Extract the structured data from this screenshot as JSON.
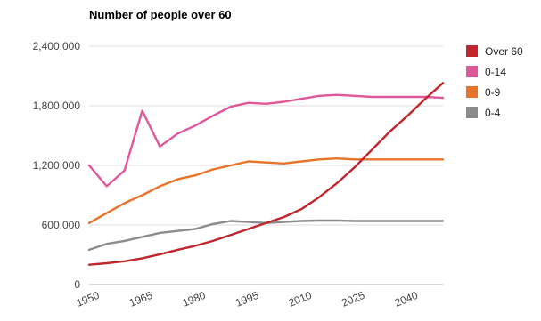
{
  "chart_data": {
    "type": "line",
    "title": "Number of people over 60",
    "xlabel": "",
    "ylabel": "",
    "x": [
      1950,
      1955,
      1960,
      1965,
      1970,
      1975,
      1980,
      1985,
      1990,
      1995,
      2000,
      2005,
      2010,
      2015,
      2020,
      2025,
      2030,
      2035,
      2040,
      2045,
      2050
    ],
    "x_ticks": [
      1950,
      1965,
      1980,
      1995,
      2010,
      2025,
      2040
    ],
    "y_ticks": [
      0,
      600000,
      1200000,
      1800000,
      2400000
    ],
    "y_tick_labels": [
      "0",
      "600,000",
      "1,200,000",
      "1,800,000",
      "2,400,000"
    ],
    "xlim": [
      1950,
      2050
    ],
    "ylim": [
      0,
      2400000
    ],
    "grid": true,
    "legend_position": "right",
    "series": [
      {
        "name": "Over 60",
        "color": "#c0262c",
        "values": [
          200000,
          215000,
          235000,
          265000,
          305000,
          350000,
          390000,
          440000,
          500000,
          560000,
          620000,
          680000,
          760000,
          880000,
          1020000,
          1180000,
          1360000,
          1540000,
          1700000,
          1870000,
          2030000
        ]
      },
      {
        "name": "0-14",
        "color": "#e0579a",
        "values": [
          1200000,
          990000,
          1150000,
          1750000,
          1390000,
          1520000,
          1600000,
          1700000,
          1790000,
          1830000,
          1820000,
          1840000,
          1870000,
          1900000,
          1910000,
          1900000,
          1890000,
          1890000,
          1890000,
          1890000,
          1880000
        ]
      },
      {
        "name": "0-9",
        "color": "#e8742a",
        "values": [
          620000,
          720000,
          820000,
          900000,
          990000,
          1060000,
          1100000,
          1160000,
          1200000,
          1240000,
          1230000,
          1220000,
          1240000,
          1260000,
          1270000,
          1260000,
          1260000,
          1260000,
          1260000,
          1260000,
          1260000
        ]
      },
      {
        "name": "0-4",
        "color": "#8c8c8c",
        "values": [
          350000,
          410000,
          440000,
          480000,
          520000,
          540000,
          560000,
          610000,
          640000,
          630000,
          620000,
          630000,
          640000,
          645000,
          645000,
          640000,
          640000,
          640000,
          640000,
          640000,
          640000
        ]
      }
    ]
  }
}
